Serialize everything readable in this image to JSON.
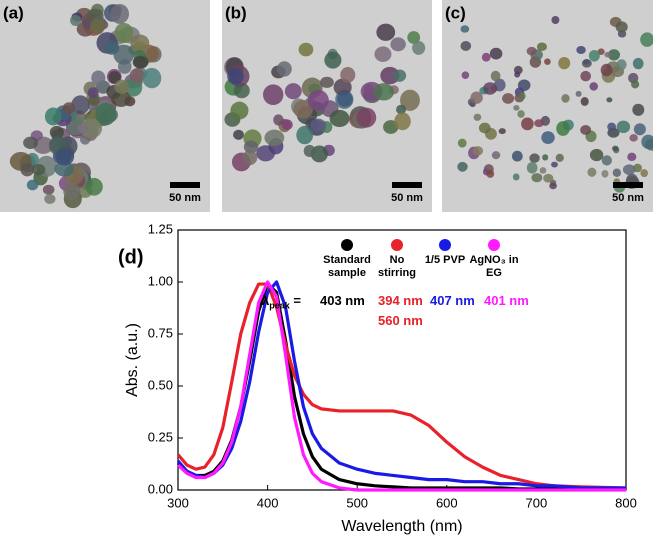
{
  "panels": [
    {
      "label": "(a)",
      "scale_bar": "50 nm"
    },
    {
      "label": "(b)",
      "scale_bar": "50 nm"
    },
    {
      "label": "(c)",
      "scale_bar": "50 nm"
    }
  ],
  "chart_data": {
    "type": "line",
    "panel_label": "(d)",
    "x_label": "Wavelength (nm)",
    "y_label": "Abs. (a.u.)",
    "xlim": [
      300,
      800
    ],
    "xticks": [
      300,
      400,
      500,
      600,
      700,
      800
    ],
    "ylim": [
      0,
      1.25
    ],
    "yticks": [
      {
        "value": 0,
        "label": "0.00"
      },
      {
        "value": 0.25,
        "label": "0.25"
      },
      {
        "value": 0.5,
        "label": "0.50"
      },
      {
        "value": 0.75,
        "label": "0.75"
      },
      {
        "value": 1,
        "label": "1.00"
      },
      {
        "value": 1.25,
        "label": "1.25"
      }
    ],
    "peak_symbol": "λ",
    "peak_subscript": "peak",
    "peak_equals": "=",
    "x": [
      300,
      310,
      320,
      330,
      340,
      350,
      360,
      370,
      380,
      390,
      400,
      410,
      420,
      430,
      440,
      450,
      460,
      480,
      500,
      520,
      540,
      560,
      580,
      600,
      620,
      640,
      660,
      680,
      700,
      720,
      750,
      800
    ],
    "series": [
      {
        "name": "Standard sample",
        "color": "#000000",
        "peak_labels": [
          "403 nm"
        ],
        "values": [
          0.13,
          0.09,
          0.07,
          0.07,
          0.09,
          0.14,
          0.24,
          0.4,
          0.62,
          0.86,
          0.99,
          0.95,
          0.72,
          0.45,
          0.27,
          0.16,
          0.1,
          0.05,
          0.03,
          0.02,
          0.015,
          0.01,
          0.01,
          0.01,
          0.01,
          0.01,
          0.01,
          0.005,
          0.005,
          0.005,
          0.005,
          0.005
        ]
      },
      {
        "name": "No stirring",
        "color": "#e8212a",
        "peak_labels": [
          "394 nm",
          "560 nm"
        ],
        "values": [
          0.17,
          0.12,
          0.1,
          0.11,
          0.17,
          0.3,
          0.52,
          0.75,
          0.9,
          0.99,
          0.99,
          0.88,
          0.7,
          0.55,
          0.46,
          0.41,
          0.39,
          0.38,
          0.38,
          0.38,
          0.38,
          0.36,
          0.31,
          0.23,
          0.16,
          0.11,
          0.07,
          0.05,
          0.03,
          0.02,
          0.015,
          0.01
        ]
      },
      {
        "name": "1/5 PVP",
        "color": "#1a1ae6",
        "peak_labels": [
          "407 nm"
        ],
        "values": [
          0.14,
          0.09,
          0.07,
          0.06,
          0.08,
          0.12,
          0.2,
          0.33,
          0.52,
          0.76,
          0.95,
          1.0,
          0.88,
          0.62,
          0.4,
          0.27,
          0.2,
          0.13,
          0.1,
          0.08,
          0.07,
          0.06,
          0.05,
          0.05,
          0.04,
          0.04,
          0.03,
          0.03,
          0.02,
          0.02,
          0.01,
          0.01
        ]
      },
      {
        "name": "AgNO₃ in EG",
        "color": "#ff1aff",
        "peak_labels": [
          "401 nm"
        ],
        "values": [
          0.12,
          0.08,
          0.06,
          0.06,
          0.08,
          0.13,
          0.23,
          0.4,
          0.65,
          0.9,
          1.0,
          0.93,
          0.65,
          0.35,
          0.17,
          0.08,
          0.04,
          0.01,
          0,
          0,
          0,
          0,
          0,
          0,
          0,
          0,
          0,
          0,
          0,
          0,
          0,
          0
        ]
      }
    ]
  }
}
